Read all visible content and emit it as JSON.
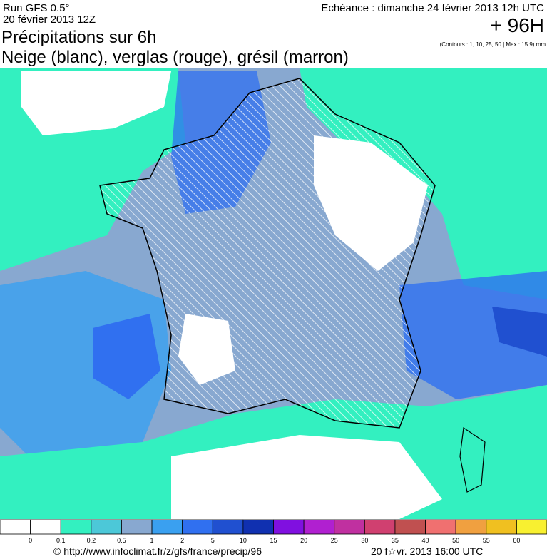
{
  "header": {
    "run": "Run GFS 0.5°",
    "run_date": "20 février 2013 12Z",
    "deadline": "Echéance : dimanche 24 février 2013 12h UTC",
    "lead": "+ 96H",
    "title": "Précipitations sur 6h",
    "subtitle": "Neige (blanc), verglas (rouge), grésil (marron)",
    "contours": "(Contours : 1, 10, 25, 50 | Max : 15.9) mm"
  },
  "legend": {
    "colors": [
      "#ffffff",
      "#ffffff",
      "#33f0c0",
      "#4cc8d8",
      "#88a8d0",
      "#3aa0f0",
      "#3070f0",
      "#2050d0",
      "#1030b0",
      "#8010e0",
      "#b020d0",
      "#c030a0",
      "#d04070",
      "#c05050",
      "#f07070",
      "#f0a040",
      "#f0c020",
      "#f8f030"
    ],
    "labels": [
      0,
      0.1,
      0.2,
      0.5,
      1,
      2,
      5,
      10,
      15,
      20,
      25,
      30,
      35,
      40,
      50,
      55,
      60
    ]
  },
  "footer": {
    "source": "© http://www.infoclimat.fr/z/gfs/france/precip/96",
    "generated": "20 f☆vr. 2013 16:00 UTC"
  }
}
